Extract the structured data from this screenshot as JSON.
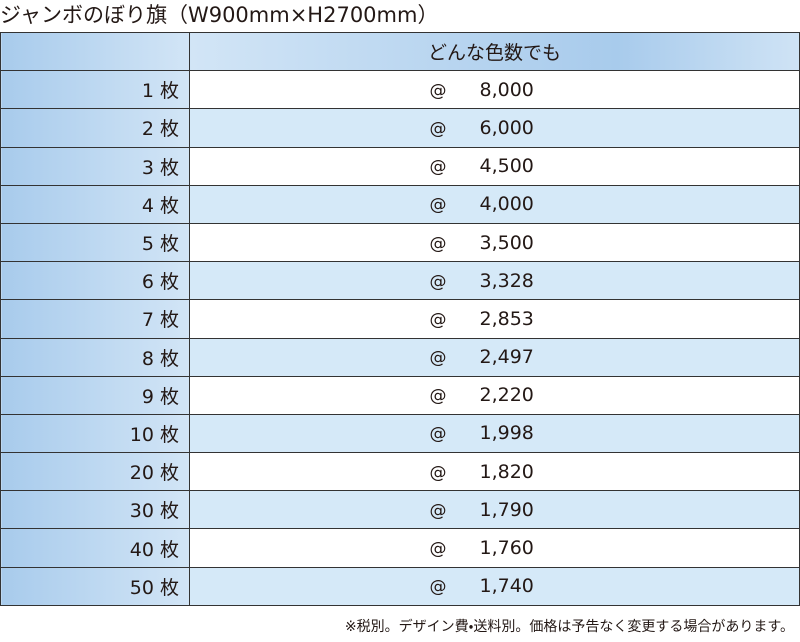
{
  "header": {
    "title": "ジャンボのぼり旗（W900mm×H2700mm）"
  },
  "table": {
    "column_header": "どんな色数でも",
    "rows": [
      [
        "1 枚",
        "@",
        "8,000"
      ],
      [
        "2 枚",
        "@",
        "6,000"
      ],
      [
        "3 枚",
        "@",
        "4,500"
      ],
      [
        "4 枚",
        "@",
        "4,000"
      ],
      [
        "5 枚",
        "@",
        "3,500"
      ],
      [
        "6 枚",
        "@",
        "3,328"
      ],
      [
        "7 枚",
        "@",
        "2,853"
      ],
      [
        "8 枚",
        "@",
        "2,497"
      ],
      [
        "9 枚",
        "@",
        "2,220"
      ],
      [
        "10 枚",
        "@",
        "1,998"
      ],
      [
        "20 枚",
        "@",
        "1,820"
      ],
      [
        "30 枚",
        "@",
        "1,790"
      ],
      [
        "40 枚",
        "@",
        "1,760"
      ],
      [
        "50 枚",
        "@",
        "1,740"
      ]
    ]
  },
  "footer": {
    "note": "※税別。デザイン費・送料別。価格は予告なく変更する場合があります。"
  }
}
